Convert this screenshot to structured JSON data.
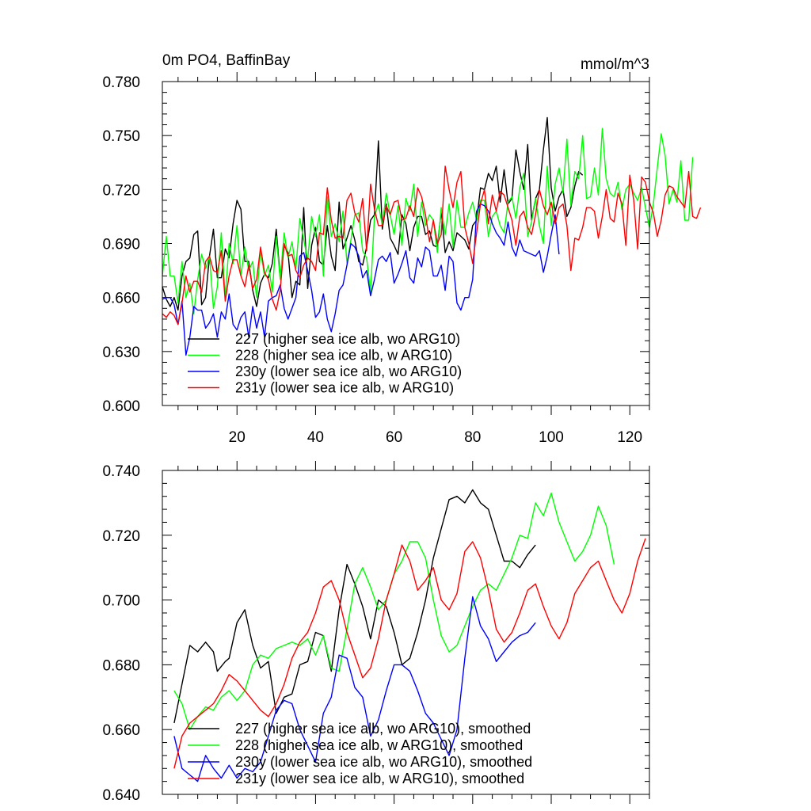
{
  "chart_data": [
    {
      "type": "line",
      "title": "0m PO4, BaffinBay",
      "units": "mmol/m^3",
      "xlim": [
        1,
        125
      ],
      "ylim": [
        0.6,
        0.78
      ],
      "xticks": [
        20,
        40,
        60,
        80,
        100,
        120
      ],
      "xtick_labels": [
        "20",
        "40",
        "60",
        "80",
        "100",
        "120"
      ],
      "yticks": [
        0.6,
        0.63,
        0.66,
        0.69,
        0.72,
        0.75,
        0.78
      ],
      "ytick_labels": [
        "0.600",
        "0.630",
        "0.660",
        "0.690",
        "0.720",
        "0.750",
        "0.780"
      ],
      "series": [
        {
          "name": "227 (higher sea ice alb, wo ARG10)",
          "color": "#000000",
          "x_start": 1,
          "values": [
            0.666,
            0.659,
            0.655,
            0.66,
            0.653,
            0.672,
            0.68,
            0.682,
            0.695,
            0.697,
            0.656,
            0.66,
            0.683,
            0.698,
            0.671,
            0.671,
            0.687,
            0.682,
            0.701,
            0.714,
            0.709,
            0.68,
            0.68,
            0.664,
            0.655,
            0.668,
            0.673,
            0.671,
            0.679,
            0.698,
            0.671,
            0.689,
            0.685,
            0.66,
            0.669,
            0.667,
            0.71,
            0.665,
            0.689,
            0.699,
            0.68,
            0.678,
            0.7,
            0.683,
            0.675,
            0.713,
            0.687,
            0.693,
            0.7,
            0.692,
            0.68,
            0.678,
            0.688,
            0.703,
            0.706,
            0.747,
            0.698,
            0.712,
            0.693,
            0.689,
            0.684,
            0.706,
            0.701,
            0.686,
            0.699,
            0.705,
            0.705,
            0.695,
            0.697,
            0.689,
            0.688,
            0.708,
            0.685,
            0.691,
            0.686,
            0.696,
            0.694,
            0.692,
            0.687,
            0.7,
            0.703,
            0.721,
            0.72,
            0.729,
            0.725,
            0.733,
            0.713,
            0.731,
            0.712,
            0.715,
            0.742,
            0.73,
            0.72,
            0.745,
            0.703,
            0.715,
            0.72,
            0.742,
            0.76,
            0.721,
            0.708,
            0.716,
            0.72,
            0.705,
            0.71,
            0.722,
            0.73,
            0.728
          ]
        },
        {
          "name": "228 (higher sea ice alb, w ARG10)",
          "color": "#00ff00",
          "x_start": 1,
          "values": [
            0.672,
            0.694,
            0.672,
            0.672,
            0.657,
            0.68,
            0.66,
            0.668,
            0.651,
            0.67,
            0.684,
            0.676,
            0.683,
            0.654,
            0.666,
            0.696,
            0.66,
            0.69,
            0.679,
            0.7,
            0.672,
            0.688,
            0.675,
            0.68,
            0.66,
            0.686,
            0.672,
            0.678,
            0.663,
            0.694,
            0.67,
            0.696,
            0.682,
            0.691,
            0.676,
            0.704,
            0.692,
            0.681,
            0.705,
            0.694,
            0.706,
            0.672,
            0.716,
            0.694,
            0.701,
            0.691,
            0.708,
            0.679,
            0.692,
            0.706,
            0.707,
            0.686,
            0.682,
            0.663,
            0.705,
            0.712,
            0.7,
            0.718,
            0.706,
            0.695,
            0.711,
            0.689,
            0.715,
            0.708,
            0.723,
            0.694,
            0.713,
            0.7,
            0.706,
            0.703,
            0.685,
            0.71,
            0.695,
            0.712,
            0.688,
            0.714,
            0.699,
            0.699,
            0.707,
            0.713,
            0.703,
            0.714,
            0.714,
            0.694,
            0.705,
            0.708,
            0.7,
            0.696,
            0.713,
            0.716,
            0.704,
            0.721,
            0.729,
            0.694,
            0.702,
            0.715,
            0.7,
            0.69,
            0.733,
            0.7,
            0.723,
            0.732,
            0.718,
            0.748,
            0.711,
            0.73,
            0.726,
            0.75,
            0.715,
            0.716,
            0.732,
            0.717,
            0.754,
            0.726,
            0.718,
            0.716,
            0.724,
            0.709,
            0.72,
            0.723,
            0.718,
            0.714,
            0.721,
            0.71,
            0.699,
            0.712,
            0.732,
            0.751,
            0.739,
            0.712,
            0.72,
            0.713,
            0.736,
            0.703,
            0.703,
            0.738
          ]
        },
        {
          "name": "230y (lower sea ice alb, wo ARG10)",
          "color": "#0000ff",
          "x_start": 1,
          "values": [
            0.659,
            0.66,
            0.66,
            0.656,
            0.645,
            0.658,
            0.628,
            0.638,
            0.655,
            0.653,
            0.653,
            0.643,
            0.646,
            0.651,
            0.638,
            0.652,
            0.648,
            0.662,
            0.645,
            0.642,
            0.649,
            0.652,
            0.638,
            0.655,
            0.643,
            0.652,
            0.638,
            0.658,
            0.66,
            0.661,
            0.667,
            0.654,
            0.648,
            0.654,
            0.66,
            0.683,
            0.685,
            0.675,
            0.664,
            0.649,
            0.652,
            0.662,
            0.648,
            0.641,
            0.651,
            0.664,
            0.667,
            0.678,
            0.69,
            0.688,
            0.683,
            0.671,
            0.675,
            0.661,
            0.67,
            0.681,
            0.683,
            0.68,
            0.685,
            0.668,
            0.673,
            0.679,
            0.686,
            0.671,
            0.668,
            0.682,
            0.677,
            0.688,
            0.686,
            0.672,
            0.672,
            0.678,
            0.664,
            0.683,
            0.68,
            0.657,
            0.653,
            0.66,
            0.66,
            0.67,
            0.708,
            0.712,
            0.711,
            0.708,
            0.701,
            0.696,
            0.693,
            0.689,
            0.702,
            0.688,
            0.683,
            0.692,
            0.686,
            0.685,
            0.684,
            0.683,
            0.686,
            0.674,
            0.683,
            0.695,
            0.706,
            0.684
          ]
        },
        {
          "name": "231y (lower sea ice alb, w ARG10)",
          "color": "#ff0000",
          "x_start": 1,
          "values": [
            0.651,
            0.649,
            0.652,
            0.65,
            0.645,
            0.657,
            0.672,
            0.663,
            0.669,
            0.669,
            0.663,
            0.68,
            0.683,
            0.675,
            0.674,
            0.686,
            0.658,
            0.672,
            0.681,
            0.681,
            0.672,
            0.666,
            0.678,
            0.665,
            0.67,
            0.688,
            0.674,
            0.67,
            0.659,
            0.653,
            0.664,
            0.69,
            0.683,
            0.684,
            0.675,
            0.671,
            0.678,
            0.682,
            0.68,
            0.675,
            0.696,
            0.695,
            0.721,
            0.703,
            0.693,
            0.694,
            0.693,
            0.714,
            0.718,
            0.707,
            0.702,
            0.715,
            0.686,
            0.723,
            0.709,
            0.7,
            0.7,
            0.711,
            0.706,
            0.713,
            0.714,
            0.703,
            0.704,
            0.711,
            0.705,
            0.721,
            0.716,
            0.706,
            0.691,
            0.703,
            0.69,
            0.695,
            0.733,
            0.72,
            0.71,
            0.724,
            0.73,
            0.699,
            0.69,
            0.679,
            0.696,
            0.712,
            0.72,
            0.701,
            0.717,
            0.708,
            0.719,
            0.717,
            0.71,
            0.703,
            0.689,
            0.705,
            0.708,
            0.699,
            0.695,
            0.706,
            0.72,
            0.711,
            0.706,
            0.713,
            0.701,
            0.71,
            0.712,
            0.7,
            0.675,
            0.693,
            0.692,
            0.699,
            0.71,
            0.71,
            0.708,
            0.693,
            0.705,
            0.72,
            0.704,
            0.702,
            0.718,
            0.712,
            0.689,
            0.728,
            0.714,
            0.687,
            0.727,
            0.724,
            0.713,
            0.707,
            0.694,
            0.703,
            0.717,
            0.722,
            0.721,
            0.716,
            0.713,
            0.71,
            0.73,
            0.705,
            0.704,
            0.71
          ]
        }
      ]
    },
    {
      "type": "line",
      "title": "",
      "xlim": [
        1,
        125
      ],
      "ylim": [
        0.64,
        0.74
      ],
      "xticks": [
        20,
        40,
        60,
        80,
        100,
        120
      ],
      "yticks": [
        0.64,
        0.66,
        0.68,
        0.7,
        0.72,
        0.74
      ],
      "ytick_labels": [
        "0.640",
        "0.660",
        "0.680",
        "0.700",
        "0.720",
        "0.740"
      ],
      "series": [
        {
          "name": "227 (higher sea ice alb, wo ARG10), smoothed",
          "color": "#000000",
          "x": [
            4,
            6,
            8,
            10,
            12,
            14,
            15,
            17,
            18,
            20,
            22,
            24,
            26,
            28,
            30,
            32,
            34,
            36,
            38,
            40,
            42,
            44,
            46,
            48,
            50,
            52,
            54,
            56,
            58,
            60,
            62,
            64,
            66,
            68,
            70,
            72,
            74,
            76,
            78,
            80,
            82,
            84,
            86,
            88,
            90,
            92,
            94,
            96
          ],
          "values": [
            0.662,
            0.674,
            0.686,
            0.684,
            0.687,
            0.684,
            0.678,
            0.681,
            0.682,
            0.693,
            0.697,
            0.686,
            0.679,
            0.681,
            0.665,
            0.67,
            0.671,
            0.68,
            0.681,
            0.69,
            0.689,
            0.678,
            0.697,
            0.711,
            0.705,
            0.698,
            0.688,
            0.7,
            0.698,
            0.69,
            0.68,
            0.682,
            0.69,
            0.7,
            0.713,
            0.722,
            0.731,
            0.732,
            0.73,
            0.734,
            0.73,
            0.728,
            0.72,
            0.712,
            0.712,
            0.71,
            0.714,
            0.717
          ]
        },
        {
          "name": "228 (higher sea ice alb, w ARG10), smoothed",
          "color": "#00ff00",
          "x": [
            4,
            6,
            8,
            10,
            12,
            14,
            16,
            18,
            20,
            22,
            24,
            26,
            28,
            30,
            32,
            34,
            36,
            38,
            40,
            42,
            44,
            46,
            48,
            50,
            52,
            54,
            56,
            58,
            60,
            62,
            64,
            66,
            68,
            70,
            72,
            74,
            76,
            78,
            80,
            82,
            84,
            86,
            88,
            90,
            92,
            94,
            96,
            98,
            100,
            102,
            104,
            106,
            108,
            110,
            112,
            114,
            116
          ],
          "values": [
            0.672,
            0.668,
            0.66,
            0.664,
            0.667,
            0.666,
            0.67,
            0.672,
            0.669,
            0.672,
            0.68,
            0.683,
            0.682,
            0.685,
            0.686,
            0.687,
            0.686,
            0.688,
            0.683,
            0.689,
            0.679,
            0.678,
            0.691,
            0.705,
            0.71,
            0.704,
            0.697,
            0.7,
            0.708,
            0.712,
            0.718,
            0.718,
            0.713,
            0.7,
            0.689,
            0.684,
            0.686,
            0.692,
            0.698,
            0.703,
            0.705,
            0.703,
            0.708,
            0.713,
            0.72,
            0.719,
            0.73,
            0.726,
            0.733,
            0.724,
            0.718,
            0.712,
            0.715,
            0.72,
            0.729,
            0.723,
            0.711
          ]
        },
        {
          "name": "230y (lower sea ice alb, wo ARG10), smoothed",
          "color": "#0000ff",
          "x": [
            4,
            6,
            8,
            10,
            12,
            14,
            16,
            18,
            20,
            22,
            24,
            26,
            28,
            30,
            32,
            34,
            36,
            38,
            40,
            42,
            44,
            46,
            48,
            50,
            52,
            54,
            56,
            58,
            60,
            62,
            64,
            66,
            68,
            70,
            72,
            74,
            76,
            78,
            80,
            82,
            84,
            86,
            88,
            90,
            92,
            94,
            96
          ],
          "values": [
            0.658,
            0.648,
            0.646,
            0.644,
            0.652,
            0.648,
            0.645,
            0.649,
            0.645,
            0.648,
            0.647,
            0.65,
            0.658,
            0.666,
            0.669,
            0.668,
            0.66,
            0.655,
            0.65,
            0.665,
            0.67,
            0.683,
            0.682,
            0.673,
            0.67,
            0.658,
            0.663,
            0.672,
            0.68,
            0.68,
            0.678,
            0.672,
            0.665,
            0.662,
            0.657,
            0.652,
            0.66,
            0.682,
            0.701,
            0.692,
            0.688,
            0.681,
            0.684,
            0.687,
            0.689,
            0.69,
            0.693
          ]
        },
        {
          "name": "231y (lower sea ice alb, w ARG10), smoothed",
          "color": "#ff0000",
          "x": [
            4,
            6,
            8,
            10,
            12,
            14,
            16,
            18,
            20,
            22,
            24,
            26,
            28,
            30,
            32,
            34,
            36,
            38,
            40,
            42,
            44,
            46,
            48,
            50,
            52,
            54,
            56,
            58,
            60,
            62,
            64,
            66,
            68,
            70,
            72,
            74,
            76,
            78,
            80,
            82,
            84,
            86,
            88,
            90,
            92,
            94,
            96,
            98,
            100,
            102,
            104,
            106,
            108,
            110,
            112,
            114,
            116,
            118,
            120,
            122,
            124
          ],
          "values": [
            0.648,
            0.658,
            0.662,
            0.664,
            0.666,
            0.668,
            0.672,
            0.677,
            0.675,
            0.672,
            0.669,
            0.666,
            0.664,
            0.668,
            0.674,
            0.682,
            0.687,
            0.69,
            0.696,
            0.704,
            0.706,
            0.7,
            0.69,
            0.683,
            0.676,
            0.679,
            0.688,
            0.7,
            0.708,
            0.717,
            0.712,
            0.703,
            0.706,
            0.71,
            0.7,
            0.697,
            0.702,
            0.715,
            0.718,
            0.713,
            0.703,
            0.691,
            0.687,
            0.69,
            0.696,
            0.703,
            0.705,
            0.698,
            0.692,
            0.688,
            0.693,
            0.702,
            0.706,
            0.71,
            0.712,
            0.706,
            0.7,
            0.696,
            0.702,
            0.712,
            0.719
          ]
        }
      ]
    }
  ]
}
